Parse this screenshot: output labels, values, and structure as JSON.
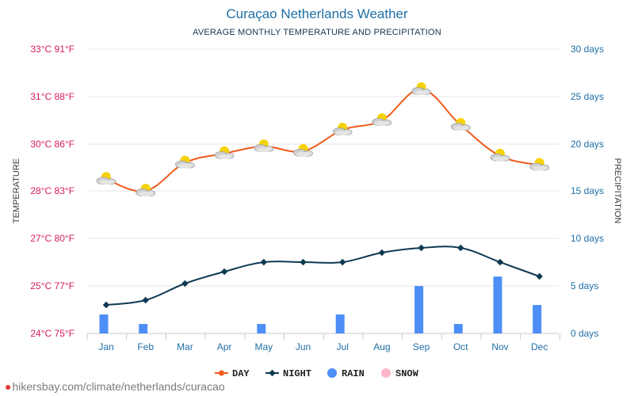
{
  "header": {
    "title": "Curaçao Netherlands Weather",
    "subtitle": "AVERAGE MONTHLY TEMPERATURE AND PRECIPITATION"
  },
  "footer": {
    "pin_icon": "location-pin-icon",
    "url": "hikersbay.com/climate/netherlands/curacao"
  },
  "colors": {
    "day": "#f05a1a",
    "night": "#0e3a52",
    "rain": "#4d8ef7",
    "snow": "#ffb6c8",
    "left_axis_text": "#d81b60",
    "right_axis_text": "#1f6fa6",
    "grid": "#e6e6e6"
  },
  "chart_data": {
    "type": "line",
    "title": "Curaçao Netherlands Weather",
    "subtitle": "AVERAGE MONTHLY TEMPERATURE AND PRECIPITATION",
    "ylabel": "TEMPERATURE",
    "y2label": "PRECIPITATION",
    "categories": [
      "Jan",
      "Feb",
      "Mar",
      "Apr",
      "May",
      "Jun",
      "Jul",
      "Aug",
      "Sep",
      "Oct",
      "Nov",
      "Dec"
    ],
    "ylim": [
      24,
      33
    ],
    "y2lim": [
      0,
      30
    ],
    "y_ticks": [
      {
        "value": 33,
        "label": "33°C 91°F"
      },
      {
        "value": 31,
        "label": "31°C 88°F"
      },
      {
        "value": 30,
        "label": "30°C 86°F"
      },
      {
        "value": 28,
        "label": "28°C 83°F"
      },
      {
        "value": 27,
        "label": "27°C 80°F"
      },
      {
        "value": 25,
        "label": "25°C 77°F"
      },
      {
        "value": 24,
        "label": "24°C 75°F"
      }
    ],
    "y2_ticks": [
      "30 days",
      "25 days",
      "20 days",
      "15 days",
      "10 days",
      "5 days",
      "0 days"
    ],
    "series": [
      {
        "name": "DAY",
        "kind": "line",
        "axis": "left",
        "values": [
          28.5,
          28.0,
          29.2,
          29.6,
          29.9,
          29.7,
          30.3,
          30.5,
          31.3,
          30.4,
          29.5,
          29.1
        ],
        "marker_icon": "partly-cloudy-icon"
      },
      {
        "name": "NIGHT",
        "kind": "line",
        "axis": "left",
        "values": [
          24.6,
          24.7,
          25.1,
          25.6,
          26.0,
          26.0,
          26.0,
          26.4,
          26.6,
          26.6,
          26.0,
          25.4
        ],
        "marker": "diamond"
      },
      {
        "name": "RAIN",
        "kind": "bar",
        "axis": "right",
        "values": [
          2,
          1,
          0,
          0,
          1,
          0,
          2,
          0,
          5,
          1,
          6,
          3
        ]
      },
      {
        "name": "SNOW",
        "kind": "bar",
        "axis": "right",
        "values": [
          0,
          0,
          0,
          0,
          0,
          0,
          0,
          0,
          0,
          0,
          0,
          0
        ]
      }
    ],
    "grid": true,
    "legend_position": "bottom"
  }
}
